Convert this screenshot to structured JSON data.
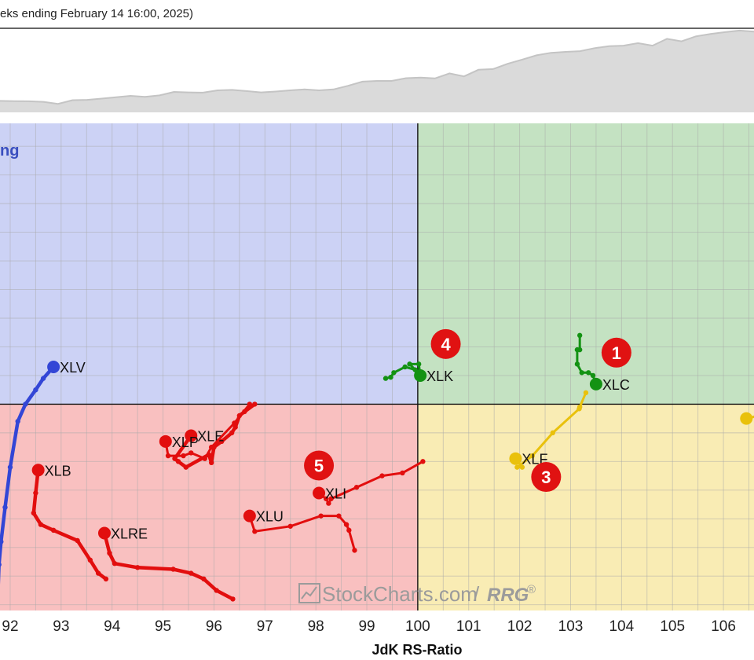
{
  "header": {
    "caption": "eks ending February 14 16:00, 2025)"
  },
  "colors": {
    "improving": "#ccd2f5",
    "leading": "#c4e2c2",
    "lagging": "#f9c0c0",
    "weakening": "#f9ecb4",
    "grid": "#a9a9a9",
    "benchmark_fill": "#dadada",
    "benchmark_line": "#c4c4c4",
    "badge": "#e01212"
  },
  "watermark": {
    "main": "StockCharts.com",
    "slash": "/",
    "rrg": "RRG",
    "reg": "®"
  },
  "chart_data": {
    "type": "scatter",
    "title": "",
    "xlabel": "JdK RS-Ratio",
    "ylabel": "",
    "xlim": [
      91.8,
      106.6
    ],
    "ylim": [
      96.4,
      104.9
    ],
    "x_ticks": [
      92,
      93,
      94,
      95,
      96,
      97,
      98,
      99,
      100,
      101,
      102,
      103,
      104,
      105,
      106
    ],
    "x_tick_labels": [
      "92",
      "93",
      "94",
      "95",
      "96",
      "97",
      "98",
      "99",
      "100",
      "101",
      "102",
      "103",
      "104",
      "105",
      "106"
    ],
    "grid": true,
    "quadrant_center": [
      100,
      100
    ],
    "quadrant_labels": [
      {
        "text": "ng",
        "quadrant": "improving"
      }
    ],
    "benchmark_values": [
      100.0,
      99.9,
      99.85,
      99.6,
      98.7,
      100.3,
      100.45,
      101.0,
      101.6,
      102.2,
      101.8,
      102.4,
      103.9,
      103.7,
      103.6,
      104.6,
      104.8,
      104.3,
      103.7,
      104.1,
      104.6,
      105.0,
      104.6,
      105.0,
      106.6,
      108.4,
      108.7,
      108.7,
      109.9,
      110.2,
      109.8,
      112.0,
      110.7,
      113.6,
      113.9,
      116.2,
      118.0,
      119.9,
      121.0,
      121.4,
      121.7,
      123.0,
      123.9,
      124.1,
      125.2,
      124.1,
      127.1,
      126.0,
      128.2,
      129.2,
      130.0,
      130.7,
      130.2
    ],
    "series": [
      {
        "name": "XLC",
        "color": "#139213",
        "x": [
          103.18,
          103.18,
          103.13,
          103.13,
          103.22,
          103.35,
          103.44,
          103.5
        ],
        "y": [
          101.2,
          100.95,
          100.95,
          100.7,
          100.55,
          100.55,
          100.5,
          100.35
        ]
      },
      {
        "name": "XLK",
        "color": "#139213",
        "x": [
          99.37,
          99.47,
          99.53,
          99.75,
          99.95,
          99.84,
          100.02,
          100.05
        ],
        "y": [
          100.45,
          100.47,
          100.55,
          100.65,
          100.6,
          100.7,
          100.7,
          100.5
        ]
      },
      {
        "name": "XLF",
        "color": "#e9c10c",
        "x": [
          103.3,
          103.18,
          103.17,
          102.65,
          102.25,
          101.95,
          102.05,
          101.92
        ],
        "y": [
          100.2,
          99.95,
          99.92,
          99.5,
          99.1,
          98.9,
          98.9,
          99.05
        ]
      },
      {
        "name": "XLI",
        "color": "#e20e0e",
        "x": [
          100.1,
          99.7,
          99.3,
          98.8,
          98.3,
          98.25,
          98.2,
          98.06
        ],
        "y": [
          99.0,
          98.8,
          98.75,
          98.55,
          98.35,
          98.27,
          98.35,
          98.45
        ]
      },
      {
        "name": "XLU",
        "color": "#e20e0e",
        "x": [
          98.76,
          98.65,
          98.6,
          98.45,
          98.1,
          97.5,
          96.8,
          96.7
        ],
        "y": [
          97.45,
          97.8,
          97.9,
          98.05,
          98.05,
          97.87,
          97.78,
          98.05
        ]
      },
      {
        "name": "XLE",
        "color": "#e20e0e",
        "x": [
          96.8,
          96.6,
          96.5,
          96.42,
          96.35,
          96.15,
          96.0,
          95.95,
          95.9,
          95.45,
          95.3,
          95.23,
          95.55
        ],
        "y": [
          100.0,
          99.87,
          99.8,
          99.6,
          99.5,
          99.35,
          99.25,
          98.98,
          99.12,
          98.9,
          99.0,
          99.05,
          99.45
        ]
      },
      {
        "name": "XLP",
        "color": "#e20e0e",
        "x": [
          96.7,
          96.4,
          95.95,
          95.82,
          95.55,
          95.4,
          95.1,
          95.05
        ],
        "y": [
          100.0,
          99.67,
          99.25,
          99.05,
          99.15,
          99.1,
          99.1,
          99.35
        ]
      },
      {
        "name": "XLRE",
        "color": "#e20e0e",
        "x": [
          96.37,
          96.05,
          95.8,
          95.55,
          95.2,
          94.5,
          94.05,
          93.95,
          93.85
        ],
        "y": [
          96.6,
          96.75,
          96.95,
          97.05,
          97.12,
          97.15,
          97.22,
          97.4,
          97.75
        ]
      },
      {
        "name": "XLB",
        "color": "#e20e0e",
        "x": [
          93.88,
          93.73,
          93.57,
          93.32,
          92.85,
          92.6,
          92.46,
          92.5,
          92.55
        ],
        "y": [
          96.95,
          97.05,
          97.28,
          97.62,
          97.8,
          97.9,
          98.1,
          98.45,
          98.85
        ]
      },
      {
        "name": "XLV",
        "color": "#3346d6",
        "x": [
          91.75,
          91.78,
          91.82,
          91.9,
          92.0,
          92.15,
          92.3,
          92.5,
          92.65,
          92.85
        ],
        "y": [
          96.5,
          97.2,
          97.6,
          98.2,
          98.9,
          99.7,
          100.0,
          100.25,
          100.45,
          100.65
        ]
      },
      {
        "name": "",
        "color": "#e9c10c",
        "x": [
          106.7,
          106.45
        ],
        "y": [
          99.8,
          99.75
        ]
      }
    ],
    "annotations": [
      {
        "text": "1",
        "x": 103.9,
        "y": 100.9
      },
      {
        "text": "3",
        "x": 102.52,
        "y": 98.73
      },
      {
        "text": "4",
        "x": 100.55,
        "y": 101.05
      },
      {
        "text": "5",
        "x": 98.06,
        "y": 98.93
      }
    ]
  }
}
